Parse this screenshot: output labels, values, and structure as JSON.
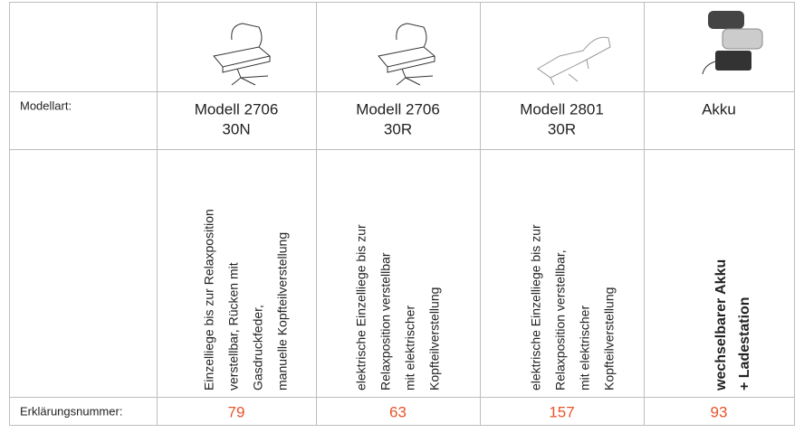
{
  "model_row": {
    "label": "Modellart:",
    "models": [
      {
        "name": "Modell 2706",
        "code": "30N"
      },
      {
        "name": "Modell 2706",
        "code": "30R"
      },
      {
        "name": "Modell 2801",
        "code": "30R"
      },
      {
        "name": "Akku"
      }
    ]
  },
  "description_row": {
    "descriptions": [
      [
        "Einzelliege bis zur Relaxposition",
        "verstellbar, Rücken mit",
        "Gasdruckfeder,",
        "manuelle Kopfteilverstellung"
      ],
      [
        "elektrische Einzelliege bis zur",
        "Relaxposition verstellbar",
        "mit elektrischer",
        "Kopfteilverstellung"
      ],
      [
        "elektrische Einzelliege bis zur",
        "Relaxposition verstellbar,",
        "mit elektrischer",
        "Kopfteilverstellung"
      ],
      [
        "wechselbarer Akku",
        "+ Ladestation"
      ]
    ]
  },
  "number_row": {
    "label": "Erklärungsnummer:",
    "numbers": [
      79,
      63,
      157,
      93
    ]
  }
}
